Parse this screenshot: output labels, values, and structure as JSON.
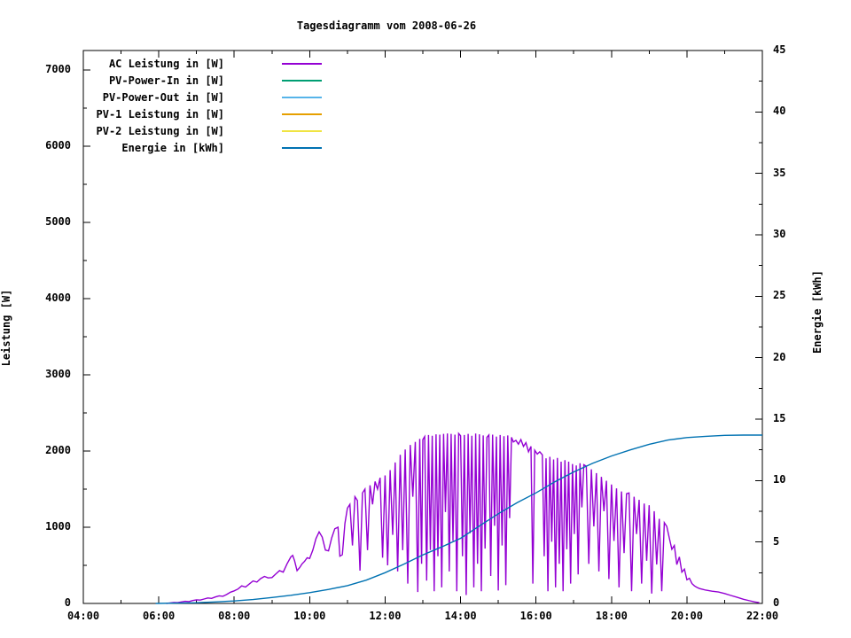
{
  "chart_data": {
    "type": "line",
    "title": "Tagesdiagramm vom 2008-06-26",
    "ylabel": "Leistung [W]",
    "y2label": "Energie [kWh]",
    "x_axis": {
      "min_hour": 4,
      "max_hour": 22,
      "major_every_hours": 2,
      "minor_every_hours": 1,
      "tick_labels": [
        "04:00",
        "06:00",
        "08:00",
        "10:00",
        "12:00",
        "14:00",
        "16:00",
        "18:00",
        "20:00",
        "22:00"
      ]
    },
    "y_axis": {
      "min": 0,
      "max": 7000,
      "major_step": 1000,
      "minor_step": 500,
      "tick_labels": [
        "0",
        "1000",
        "2000",
        "3000",
        "4000",
        "5000",
        "6000",
        "7000"
      ]
    },
    "y2_axis": {
      "min": 0,
      "max": 45,
      "major_step": 5,
      "minor_step": 2.5,
      "tick_labels": [
        "0",
        "5",
        "10",
        "15",
        "20",
        "25",
        "30",
        "35",
        "40",
        "45"
      ]
    },
    "grid": false,
    "legend_position": "top-left-inside",
    "series": [
      {
        "name": "AC Leistung in [W]",
        "color": "#9400d3",
        "axis": "y1",
        "points": [
          [
            372,
            0
          ],
          [
            378,
            6
          ],
          [
            384,
            12
          ],
          [
            390,
            10
          ],
          [
            396,
            20
          ],
          [
            402,
            28
          ],
          [
            408,
            25
          ],
          [
            414,
            38
          ],
          [
            420,
            48
          ],
          [
            426,
            44
          ],
          [
            432,
            58
          ],
          [
            438,
            72
          ],
          [
            444,
            66
          ],
          [
            450,
            85
          ],
          [
            456,
            100
          ],
          [
            462,
            94
          ],
          [
            468,
            118
          ],
          [
            474,
            148
          ],
          [
            480,
            165
          ],
          [
            486,
            190
          ],
          [
            492,
            230
          ],
          [
            498,
            215
          ],
          [
            504,
            255
          ],
          [
            510,
            295
          ],
          [
            516,
            280
          ],
          [
            522,
            325
          ],
          [
            528,
            355
          ],
          [
            534,
            335
          ],
          [
            540,
            340
          ],
          [
            546,
            385
          ],
          [
            552,
            430
          ],
          [
            558,
            410
          ],
          [
            564,
            520
          ],
          [
            570,
            610
          ],
          [
            573,
            630
          ],
          [
            576,
            560
          ],
          [
            580,
            430
          ],
          [
            584,
            470
          ],
          [
            588,
            520
          ],
          [
            592,
            555
          ],
          [
            596,
            600
          ],
          [
            600,
            590
          ],
          [
            605,
            700
          ],
          [
            610,
            850
          ],
          [
            615,
            940
          ],
          [
            620,
            870
          ],
          [
            625,
            700
          ],
          [
            630,
            690
          ],
          [
            635,
            860
          ],
          [
            640,
            980
          ],
          [
            645,
            1000
          ],
          [
            648,
            620
          ],
          [
            652,
            640
          ],
          [
            656,
            1050
          ],
          [
            660,
            1250
          ],
          [
            664,
            1300
          ],
          [
            668,
            760
          ],
          [
            672,
            1400
          ],
          [
            676,
            1350
          ],
          [
            680,
            430
          ],
          [
            684,
            1450
          ],
          [
            688,
            1500
          ],
          [
            692,
            700
          ],
          [
            696,
            1550
          ],
          [
            700,
            1300
          ],
          [
            704,
            1600
          ],
          [
            708,
            1500
          ],
          [
            712,
            1650
          ],
          [
            716,
            600
          ],
          [
            720,
            1680
          ],
          [
            724,
            500
          ],
          [
            728,
            1750
          ],
          [
            732,
            900
          ],
          [
            736,
            1850
          ],
          [
            740,
            420
          ],
          [
            744,
            1950
          ],
          [
            748,
            700
          ],
          [
            752,
            2020
          ],
          [
            756,
            260
          ],
          [
            760,
            2080
          ],
          [
            764,
            1400
          ],
          [
            768,
            2120
          ],
          [
            772,
            150
          ],
          [
            775,
            2160
          ],
          [
            778,
            520
          ],
          [
            780,
            2150
          ],
          [
            783,
            2190
          ],
          [
            786,
            300
          ],
          [
            789,
            2210
          ],
          [
            792,
            700
          ],
          [
            795,
            2200
          ],
          [
            798,
            160
          ],
          [
            801,
            2220
          ],
          [
            804,
            620
          ],
          [
            807,
            2215
          ],
          [
            810,
            210
          ],
          [
            813,
            2225
          ],
          [
            816,
            1200
          ],
          [
            819,
            2230
          ],
          [
            822,
            420
          ],
          [
            825,
            2225
          ],
          [
            828,
            820
          ],
          [
            831,
            2215
          ],
          [
            834,
            160
          ],
          [
            837,
            2230
          ],
          [
            840,
            2200
          ],
          [
            843,
            620
          ],
          [
            846,
            2210
          ],
          [
            849,
            110
          ],
          [
            852,
            2225
          ],
          [
            855,
            920
          ],
          [
            858,
            2200
          ],
          [
            861,
            210
          ],
          [
            864,
            2230
          ],
          [
            867,
            520
          ],
          [
            870,
            2220
          ],
          [
            873,
            160
          ],
          [
            876,
            2205
          ],
          [
            879,
            720
          ],
          [
            882,
            2180
          ],
          [
            885,
            2210
          ],
          [
            888,
            360
          ],
          [
            891,
            2215
          ],
          [
            894,
            1020
          ],
          [
            897,
            2190
          ],
          [
            900,
            170
          ],
          [
            903,
            2210
          ],
          [
            906,
            760
          ],
          [
            909,
            2195
          ],
          [
            912,
            240
          ],
          [
            915,
            2205
          ],
          [
            918,
            1120
          ],
          [
            921,
            2180
          ],
          [
            924,
            2120
          ],
          [
            928,
            2140
          ],
          [
            932,
            2090
          ],
          [
            936,
            2150
          ],
          [
            940,
            2060
          ],
          [
            944,
            2110
          ],
          [
            948,
            1990
          ],
          [
            952,
            2060
          ],
          [
            955,
            260
          ],
          [
            958,
            2010
          ],
          [
            962,
            1960
          ],
          [
            966,
            1990
          ],
          [
            970,
            1950
          ],
          [
            973,
            620
          ],
          [
            976,
            1905
          ],
          [
            979,
            160
          ],
          [
            982,
            1925
          ],
          [
            985,
            810
          ],
          [
            988,
            1890
          ],
          [
            991,
            210
          ],
          [
            994,
            1910
          ],
          [
            997,
            520
          ],
          [
            1000,
            1860
          ],
          [
            1003,
            160
          ],
          [
            1006,
            1880
          ],
          [
            1009,
            710
          ],
          [
            1012,
            1860
          ],
          [
            1015,
            260
          ],
          [
            1018,
            1830
          ],
          [
            1021,
            910
          ],
          [
            1024,
            1810
          ],
          [
            1027,
            380
          ],
          [
            1030,
            1840
          ],
          [
            1033,
            1260
          ],
          [
            1036,
            1820
          ],
          [
            1040,
            1800
          ],
          [
            1044,
            520
          ],
          [
            1048,
            1760
          ],
          [
            1052,
            1010
          ],
          [
            1056,
            1710
          ],
          [
            1060,
            420
          ],
          [
            1064,
            1660
          ],
          [
            1068,
            1210
          ],
          [
            1072,
            1610
          ],
          [
            1076,
            320
          ],
          [
            1080,
            1560
          ],
          [
            1084,
            820
          ],
          [
            1088,
            1510
          ],
          [
            1092,
            210
          ],
          [
            1096,
            1470
          ],
          [
            1100,
            660
          ],
          [
            1104,
            1440
          ],
          [
            1108,
            1450
          ],
          [
            1112,
            160
          ],
          [
            1116,
            1400
          ],
          [
            1120,
            910
          ],
          [
            1124,
            1360
          ],
          [
            1128,
            260
          ],
          [
            1132,
            1310
          ],
          [
            1136,
            560
          ],
          [
            1140,
            1290
          ],
          [
            1144,
            130
          ],
          [
            1148,
            1210
          ],
          [
            1152,
            510
          ],
          [
            1156,
            1110
          ],
          [
            1160,
            160
          ],
          [
            1164,
            1060
          ],
          [
            1168,
            1010
          ],
          [
            1172,
            860
          ],
          [
            1176,
            710
          ],
          [
            1180,
            760
          ],
          [
            1184,
            510
          ],
          [
            1188,
            610
          ],
          [
            1192,
            410
          ],
          [
            1196,
            450
          ],
          [
            1200,
            310
          ],
          [
            1204,
            330
          ],
          [
            1208,
            260
          ],
          [
            1212,
            230
          ],
          [
            1216,
            210
          ],
          [
            1220,
            195
          ],
          [
            1225,
            185
          ],
          [
            1230,
            175
          ],
          [
            1240,
            160
          ],
          [
            1250,
            150
          ],
          [
            1260,
            130
          ],
          [
            1270,
            105
          ],
          [
            1280,
            80
          ],
          [
            1290,
            55
          ],
          [
            1300,
            35
          ],
          [
            1308,
            20
          ],
          [
            1315,
            10
          ]
        ]
      },
      {
        "name": "PV-Power-In in [W]",
        "color": "#009e73",
        "axis": "y1",
        "points": []
      },
      {
        "name": "PV-Power-Out in [W]",
        "color": "#56b4e9",
        "axis": "y1",
        "points": []
      },
      {
        "name": "PV-1 Leistung in [W]",
        "color": "#e69f00",
        "axis": "y1",
        "points": []
      },
      {
        "name": "PV-2 Leistung in [W]",
        "color": "#f0e442",
        "axis": "y1",
        "points": []
      },
      {
        "name": "Energie in [kWh]",
        "color": "#0072b2",
        "axis": "y2",
        "points": [
          [
            355,
            0
          ],
          [
            390,
            0.03
          ],
          [
            420,
            0.06
          ],
          [
            450,
            0.12
          ],
          [
            480,
            0.2
          ],
          [
            510,
            0.32
          ],
          [
            540,
            0.48
          ],
          [
            570,
            0.66
          ],
          [
            600,
            0.88
          ],
          [
            630,
            1.14
          ],
          [
            660,
            1.45
          ],
          [
            690,
            1.9
          ],
          [
            720,
            2.5
          ],
          [
            750,
            3.2
          ],
          [
            780,
            3.95
          ],
          [
            810,
            4.6
          ],
          [
            840,
            5.3
          ],
          [
            870,
            6.3
          ],
          [
            900,
            7.3
          ],
          [
            930,
            8.2
          ],
          [
            960,
            9.0
          ],
          [
            990,
            9.9
          ],
          [
            1020,
            10.7
          ],
          [
            1050,
            11.4
          ],
          [
            1080,
            12.0
          ],
          [
            1110,
            12.5
          ],
          [
            1140,
            12.95
          ],
          [
            1170,
            13.3
          ],
          [
            1200,
            13.5
          ],
          [
            1230,
            13.6
          ],
          [
            1260,
            13.68
          ],
          [
            1290,
            13.7
          ],
          [
            1320,
            13.7
          ]
        ]
      }
    ],
    "colors": {
      "axis": "#000000",
      "background": "#ffffff"
    }
  }
}
